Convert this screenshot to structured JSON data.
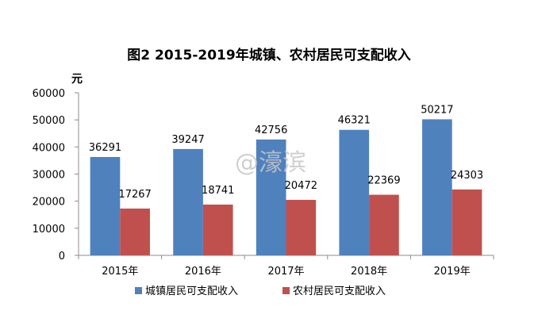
{
  "chart_data": {
    "type": "bar",
    "title": "图2  2015-2019年城镇、农村居民可支配收入",
    "ylabel": "元",
    "ylim": [
      0,
      60000
    ],
    "yticks": [
      0,
      10000,
      20000,
      30000,
      40000,
      50000,
      60000
    ],
    "categories": [
      "2015年",
      "2016年",
      "2017年",
      "2018年",
      "2019年"
    ],
    "series": [
      {
        "name": "城镇居民可支配收入",
        "color": "#4f81bd",
        "values": [
          36291,
          39247,
          42756,
          46321,
          50217
        ]
      },
      {
        "name": "农村居民可支配收入",
        "color": "#c0504d",
        "values": [
          17267,
          18741,
          20472,
          22369,
          24303
        ]
      }
    ],
    "grid": false,
    "legend": "bottom"
  },
  "watermark": "@濠滨"
}
